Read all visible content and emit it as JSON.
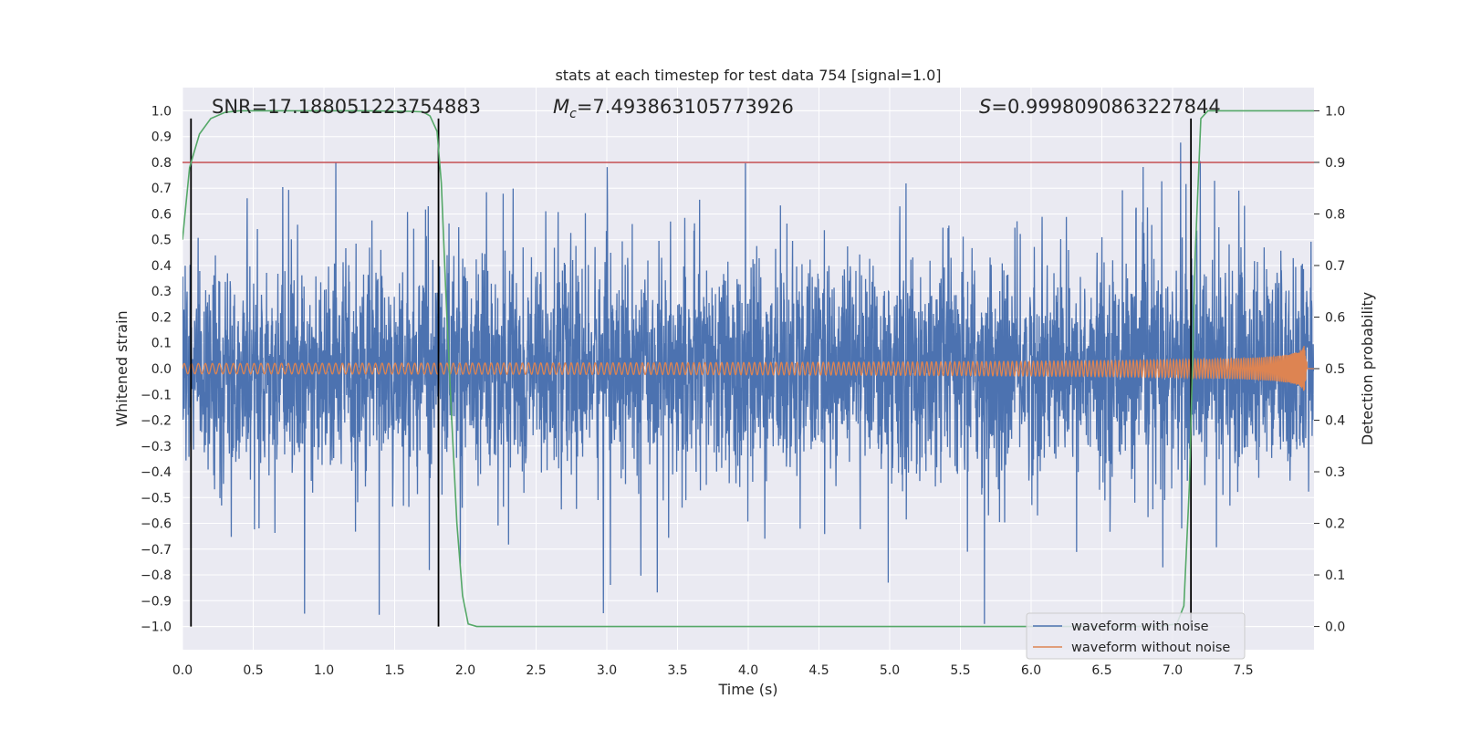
{
  "chart_data": {
    "type": "line",
    "title": "stats at each timestep for test data 754 [signal=1.0]",
    "xlabel": "Time (s)",
    "ylabel": "Whitened strain",
    "y2label": "Detection probability",
    "xlim": [
      0.0,
      8.0
    ],
    "ylim": [
      -1.09,
      1.09
    ],
    "y2lim": [
      -0.045,
      1.045
    ],
    "x_ticks": [
      "0.0",
      "0.5",
      "1.0",
      "1.5",
      "2.0",
      "2.5",
      "3.0",
      "3.5",
      "4.0",
      "4.5",
      "5.0",
      "5.5",
      "6.0",
      "6.5",
      "7.0",
      "7.5"
    ],
    "y_ticks": [
      "1.0",
      "0.9",
      "0.8",
      "0.7",
      "0.6",
      "0.5",
      "0.4",
      "0.3",
      "0.2",
      "0.1",
      "0.0",
      "-0.1",
      "-0.2",
      "-0.3",
      "-0.4",
      "-0.5",
      "-0.6",
      "-0.7",
      "-0.8",
      "-0.9",
      "-1.0"
    ],
    "y2_ticks": [
      "1.0",
      "0.9",
      "0.8",
      "0.7",
      "0.6",
      "0.5",
      "0.4",
      "0.3",
      "0.2",
      "0.1",
      "0.0"
    ],
    "grid": true,
    "legend_position": "lower-right",
    "annotations": {
      "snr": "SNR=17.188051223754883",
      "mc_symbol": "M",
      "mc_subscript": "c",
      "mc_value": "=7.493863105773926",
      "s_symbol": "S",
      "s_value": "=0.9998090863227844"
    },
    "threshold": 0.9,
    "vertical_markers": [
      0.06,
      1.81,
      7.13
    ],
    "series": [
      {
        "name": "waveform with noise",
        "color": "#4c72b0",
        "description_hidden": false
      },
      {
        "name": "waveform without noise",
        "color": "#dd8452"
      },
      {
        "name_hidden": "",
        "color": "#55a868",
        "axis": "right",
        "x": [
          0.0,
          0.05,
          0.12,
          0.2,
          0.3,
          0.4,
          0.5,
          0.7,
          1.0,
          1.3,
          1.6,
          1.7,
          1.75,
          1.8,
          1.83,
          1.86,
          1.9,
          1.94,
          1.98,
          2.02,
          2.08,
          2.2,
          3.0,
          4.0,
          5.0,
          6.0,
          6.9,
          7.03,
          7.08,
          7.12,
          7.16,
          7.2,
          7.25,
          7.35,
          8.0
        ],
        "values": [
          0.75,
          0.89,
          0.955,
          0.985,
          0.997,
          1.0,
          1.0,
          1.0,
          1.0,
          1.0,
          0.999,
          0.998,
          0.99,
          0.96,
          0.86,
          0.66,
          0.42,
          0.2,
          0.06,
          0.005,
          0.0,
          0.0,
          0.0,
          0.0,
          0.0,
          0.0,
          0.0,
          0.005,
          0.04,
          0.28,
          0.72,
          0.985,
          1.0,
          1.0,
          1.0
        ]
      }
    ],
    "colors": {
      "plot_bg": "#eaeaf2",
      "grid": "#ffffff",
      "threshold": "#c44e52",
      "markers": "#000000",
      "probability": "#55a868"
    }
  }
}
